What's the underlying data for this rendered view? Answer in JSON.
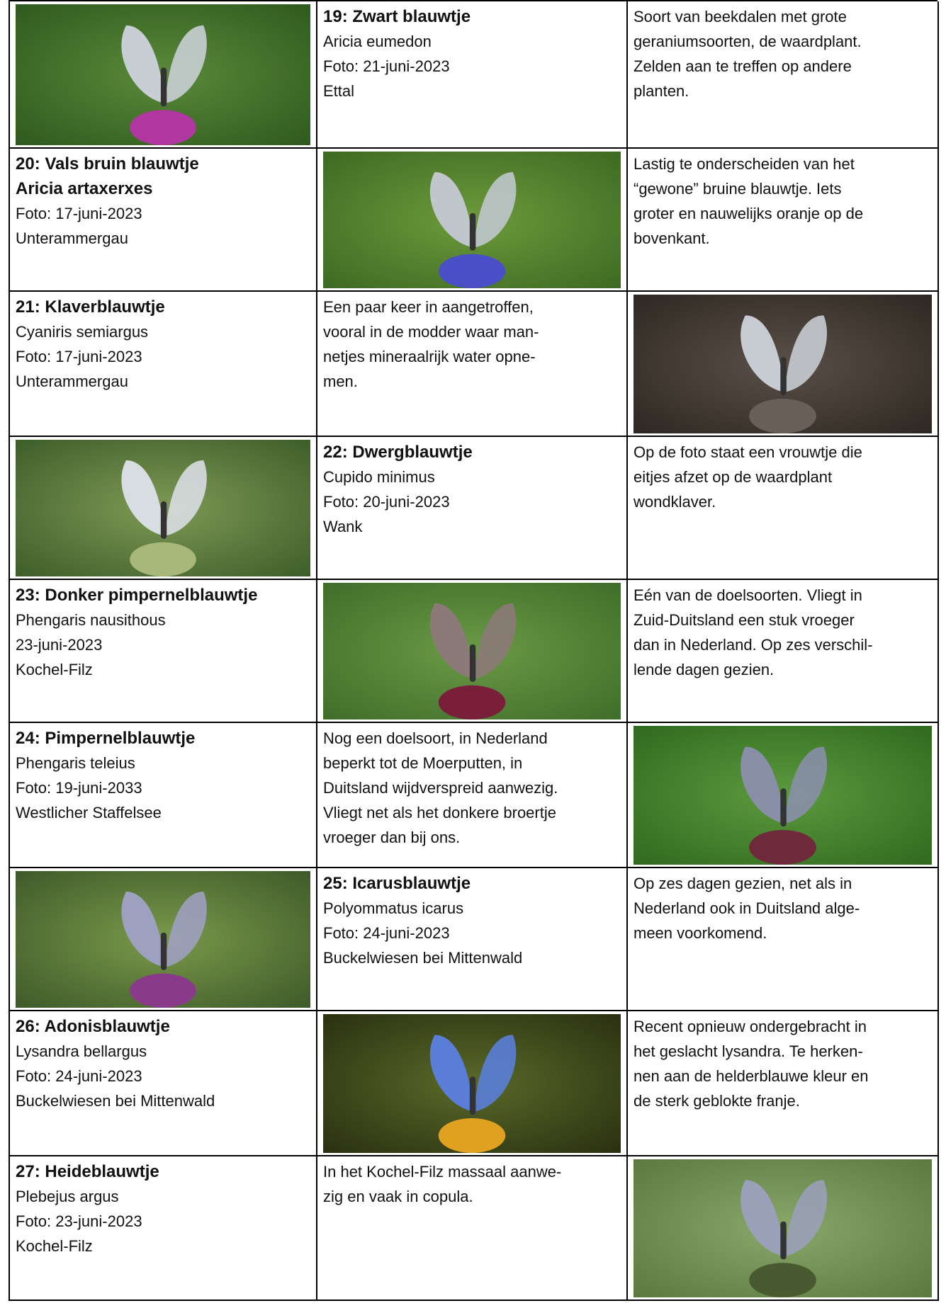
{
  "table": {
    "rows": [
      [
        null,
        {
          "bold": [
            "19: Zwart blauwtje"
          ],
          "lines": [
            "Aricia eumedon",
            "Foto: 21-juni-2023",
            "Ettal"
          ]
        },
        [
          "Soort van beekdalen met grote",
          "geraniumsoorten, de waardplant.",
          "Zelden aan te treffen op andere",
          "planten."
        ]
      ],
      [
        {
          "bold": [
            "20: Vals bruin blauwtje",
            "Aricia artaxerxes"
          ],
          "lines": [
            "Foto: 17-juni-2023",
            "Unterammergau"
          ]
        },
        null,
        [
          "Lastig te onderscheiden van het",
          "“gewone” bruine blauwtje. Iets",
          "groter en nauwelijks oranje op de",
          "bovenkant."
        ]
      ],
      [
        {
          "bold": [
            "21: Klaverblauwtje"
          ],
          "lines": [
            "Cyaniris semiargus",
            "Foto: 17-juni-2023",
            "Unterammergau"
          ]
        },
        [
          "Een paar keer in aangetroffen,",
          "vooral in de modder waar man-",
          "netjes mineraalrijk water opne-",
          "men."
        ],
        null
      ],
      [
        null,
        {
          "bold": [
            "22: Dwergblauwtje"
          ],
          "lines": [
            "Cupido minimus",
            "Foto: 20-juni-2023",
            "Wank"
          ]
        },
        [
          "Op de foto staat een vrouwtje die",
          "eitjes afzet op de waardplant",
          "wondklaver."
        ]
      ],
      [
        {
          "bold": [
            "23: Donker pimpernelblauwtje"
          ],
          "lines": [
            "Phengaris  nausithous",
            "23-juni-2023",
            "Kochel-Filz"
          ]
        },
        null,
        [
          "Eén van de doelsoorten. Vliegt in",
          "Zuid-Duitsland een stuk vroeger",
          "dan in Nederland. Op zes verschil-",
          "lende dagen gezien."
        ]
      ],
      [
        {
          "bold": [
            "24: Pimpernelblauwtje"
          ],
          "lines": [
            "Phengaris teleius",
            "Foto: 19-juni-2033",
            "Westlicher Staffelsee"
          ]
        },
        [
          "Nog een doelsoort, in Nederland",
          "beperkt tot de Moerputten, in",
          "Duitsland wijdverspreid aanwezig.",
          "Vliegt net als het donkere broertje",
          "vroeger dan bij ons."
        ],
        null
      ],
      [
        null,
        {
          "bold": [
            "25: Icarusblauwtje"
          ],
          "lines": [
            "Polyommatus icarus",
            "Foto: 24-juni-2023",
            "Buckelwiesen bei Mittenwald"
          ]
        },
        [
          "Op zes dagen gezien, net als in",
          "Nederland ook in Duitsland alge-",
          "meen voorkomend."
        ]
      ],
      [
        {
          "bold": [
            "26: Adonisblauwtje"
          ],
          "lines": [
            "Lysandra bellargus",
            "Foto: 24-juni-2023",
            "Buckelwiesen bei Mittenwald"
          ]
        },
        null,
        [
          "Recent opnieuw ondergebracht in",
          "het geslacht lysandra. Te herken-",
          "nen aan de helderblauwe kleur en",
          "de sterk geblokte franje."
        ]
      ],
      [
        {
          "bold": [
            "27: Heideblauwtje"
          ],
          "lines": [
            "Plebejus argus",
            "Foto: 23-juni-2023",
            "Kochel-Filz"
          ]
        },
        [
          "In het Kochel-Filz massaal aanwe-",
          "zig en vaak in copula."
        ],
        null
      ]
    ]
  }
}
